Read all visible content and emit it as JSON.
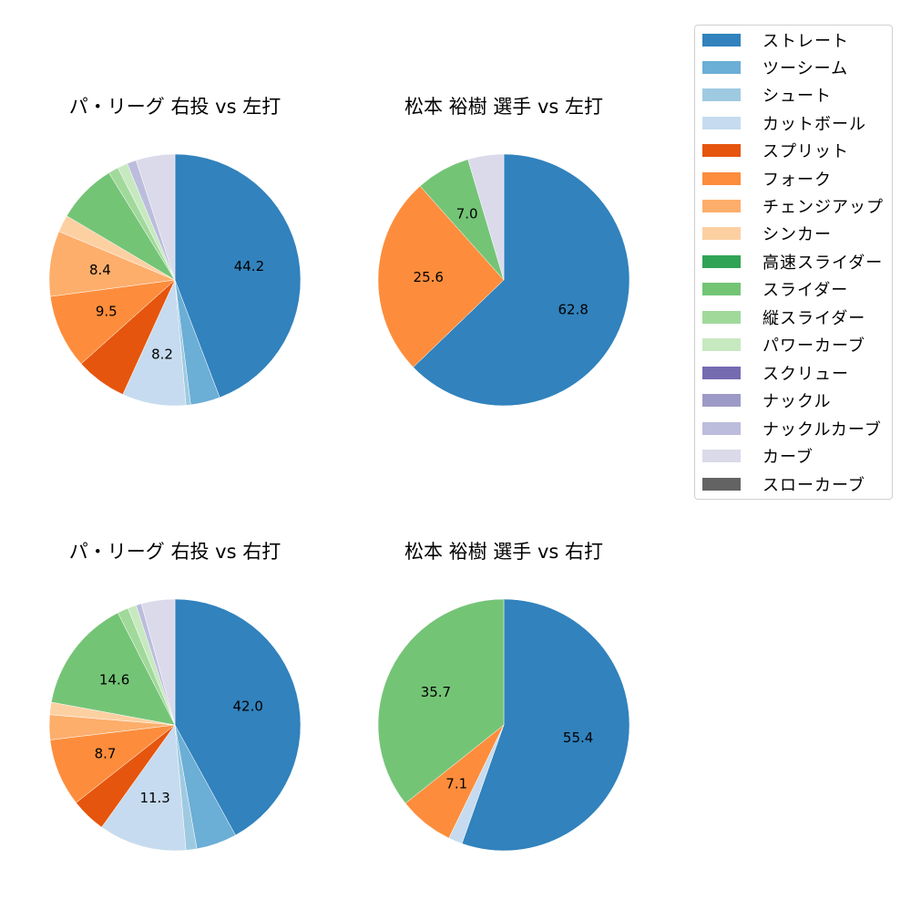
{
  "chart_data": [
    {
      "type": "pie",
      "title": "パ・リーグ 右投 vs 左打",
      "categories": [
        "ストレート",
        "ツーシーム",
        "シュート",
        "カットボール",
        "スプリット",
        "フォーク",
        "チェンジアップ",
        "シンカー",
        "スライダー",
        "縦スライダー",
        "パワーカーブ",
        "ナックルカーブ",
        "カーブ"
      ],
      "values": [
        44.2,
        3.8,
        0.6,
        8.2,
        6.6,
        9.5,
        8.4,
        2.2,
        7.7,
        1.3,
        1.3,
        1.2,
        5.0
      ],
      "labels_shown": [
        "44.2",
        "",
        "",
        "8.2",
        "",
        "9.5",
        "8.4",
        "",
        "",
        "",
        "",
        "",
        ""
      ]
    },
    {
      "type": "pie",
      "title": "松本 裕樹 選手 vs 左打",
      "categories": [
        "ストレート",
        "フォーク",
        "スライダー",
        "カーブ"
      ],
      "values": [
        62.8,
        25.6,
        7.0,
        4.6
      ],
      "labels_shown": [
        "62.8",
        "25.6",
        "7.0",
        ""
      ]
    },
    {
      "type": "pie",
      "title": "パ・リーグ 右投 vs 右打",
      "categories": [
        "ストレート",
        "ツーシーム",
        "シュート",
        "カットボール",
        "スプリット",
        "フォーク",
        "チェンジアップ",
        "シンカー",
        "スライダー",
        "縦スライダー",
        "パワーカーブ",
        "ナックルカーブ",
        "カーブ"
      ],
      "values": [
        42.0,
        5.2,
        1.4,
        11.3,
        4.5,
        8.7,
        3.2,
        1.6,
        14.6,
        1.4,
        1.1,
        0.7,
        4.3
      ],
      "labels_shown": [
        "42.0",
        "",
        "",
        "11.3",
        "",
        "8.7",
        "",
        "",
        "14.6",
        "",
        "",
        "",
        ""
      ]
    },
    {
      "type": "pie",
      "title": "松本 裕樹 選手 vs 右打",
      "categories": [
        "ストレート",
        "カットボール",
        "フォーク",
        "スライダー"
      ],
      "values": [
        55.4,
        1.8,
        7.1,
        35.7
      ],
      "labels_shown": [
        "55.4",
        "",
        "7.1",
        "35.7"
      ]
    }
  ],
  "legend": {
    "items": [
      {
        "label": "ストレート",
        "color": "#3182bd"
      },
      {
        "label": "ツーシーム",
        "color": "#6baed6"
      },
      {
        "label": "シュート",
        "color": "#9ecae1"
      },
      {
        "label": "カットボール",
        "color": "#c6dbef"
      },
      {
        "label": "スプリット",
        "color": "#e6550d"
      },
      {
        "label": "フォーク",
        "color": "#fd8d3c"
      },
      {
        "label": "チェンジアップ",
        "color": "#fdae6b"
      },
      {
        "label": "シンカー",
        "color": "#fdd0a2"
      },
      {
        "label": "高速スライダー",
        "color": "#31a354"
      },
      {
        "label": "スライダー",
        "color": "#74c476"
      },
      {
        "label": "縦スライダー",
        "color": "#a1d99b"
      },
      {
        "label": "パワーカーブ",
        "color": "#c7e9c0"
      },
      {
        "label": "スクリュー",
        "color": "#756bb1"
      },
      {
        "label": "ナックル",
        "color": "#9e9ac8"
      },
      {
        "label": "ナックルカーブ",
        "color": "#bcbddc"
      },
      {
        "label": "カーブ",
        "color": "#dadaeb"
      },
      {
        "label": "スローカーブ",
        "color": "#636363"
      }
    ]
  }
}
